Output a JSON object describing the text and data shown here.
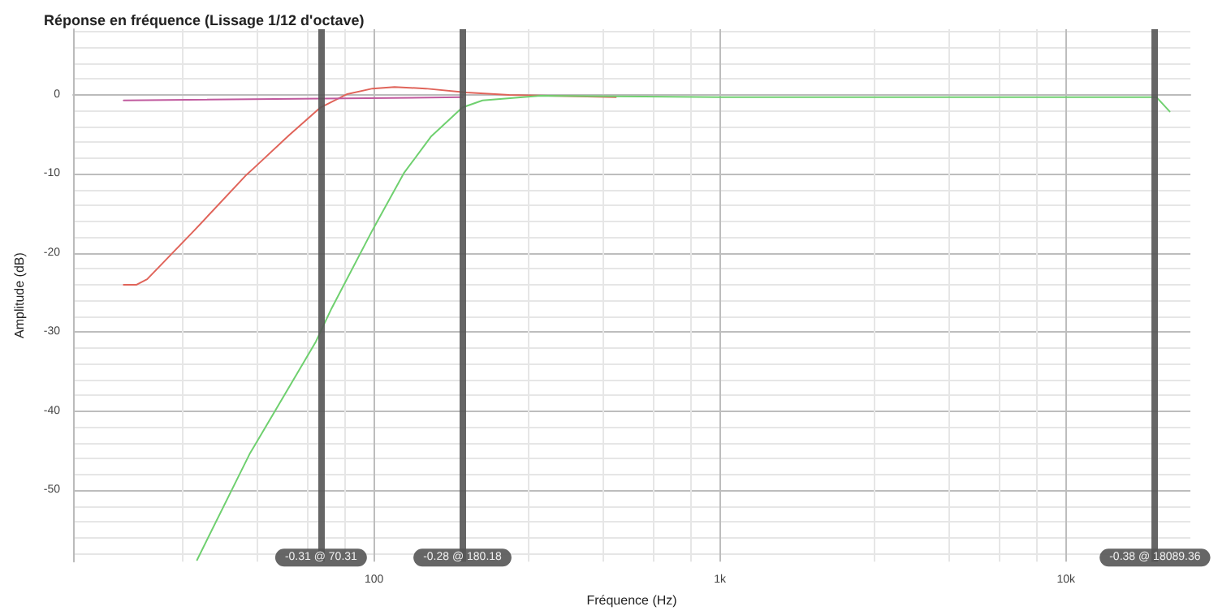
{
  "chart_data": {
    "type": "line",
    "title": "Réponse en fréquence (Lissage 1/12 d'octave)",
    "xlabel": "Fréquence (Hz)",
    "ylabel": "Amplitude (dB)",
    "log": "x",
    "grid": true,
    "marker": "none",
    "line_style": "solid",
    "xlim": [
      13.5,
      22900
    ],
    "xticks": [
      {
        "value": 100,
        "label": "100"
      },
      {
        "value": 1000,
        "label": "1k"
      },
      {
        "value": 10000,
        "label": "10k"
      }
    ],
    "ylim": [
      -59,
      8.3
    ],
    "yticks": [
      0,
      -10,
      -20,
      -30,
      -40,
      -50
    ],
    "series": [
      {
        "color": "#e0645a",
        "x": [
          18.9,
          20.6,
          22.1,
          30.3,
          42.8,
          45.1,
          56.8,
          70,
          83.7,
          99,
          114.6,
          141,
          185,
          246,
          500
        ],
        "values": [
          -24,
          -24,
          -23.3,
          -17.1,
          -10.1,
          -9.2,
          -5.1,
          -1.6,
          0.1,
          0.8,
          1.0,
          0.8,
          0.3,
          0,
          -0.3
        ]
      },
      {
        "color": "#c05a9e",
        "x": [
          18.9,
          180
        ],
        "values": [
          -0.7,
          -0.3
        ]
      },
      {
        "color": "#6fd06f",
        "x": [
          30.8,
          43.7,
          45.1,
          67.9,
          75.4,
          99,
          122,
          146,
          180,
          206,
          303,
          1000,
          18280,
          19950
        ],
        "values": [
          -58.8,
          -45.4,
          -44.4,
          -31.2,
          -27,
          -17.1,
          -9.9,
          -5.3,
          -1.6,
          -0.7,
          -0.1,
          -0.3,
          -0.3,
          -2.1
        ]
      }
    ],
    "ref_lines": [
      {
        "axis": "x",
        "value": 70.31,
        "label": "-0.31 @ 70.31",
        "color": "#555555"
      },
      {
        "axis": "x",
        "value": 180.18,
        "label": "-0.28 @ 180.18",
        "color": "#555555"
      },
      {
        "axis": "x",
        "value": 18089.36,
        "label": "-0.38 @ 18089.36",
        "color": "#555555"
      }
    ]
  }
}
